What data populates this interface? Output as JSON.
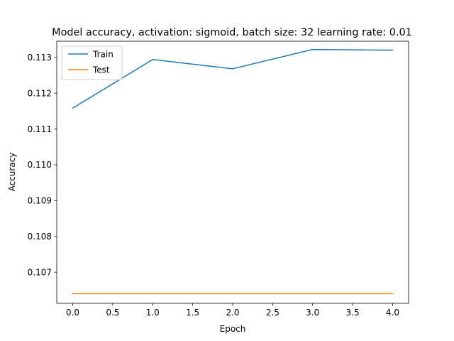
{
  "chart_data": {
    "type": "line",
    "title": "Model accuracy, activation: sigmoid, batch size: 32 learning rate: 0.01",
    "xlabel": "Epoch",
    "ylabel": "Accuracy",
    "xlim": [
      -0.2,
      4.2
    ],
    "ylim": [
      0.10613,
      0.11345
    ],
    "x_ticks": [
      0.0,
      0.5,
      1.0,
      1.5,
      2.0,
      2.5,
      3.0,
      3.5,
      4.0
    ],
    "x_tick_labels": [
      "0.0",
      "0.5",
      "1.0",
      "1.5",
      "2.0",
      "2.5",
      "3.0",
      "3.5",
      "4.0"
    ],
    "y_ticks": [
      0.107,
      0.108,
      0.109,
      0.11,
      0.111,
      0.112,
      0.113
    ],
    "y_tick_labels": [
      "0.107",
      "0.108",
      "0.109",
      "0.110",
      "0.111",
      "0.112",
      "0.113"
    ],
    "x": [
      0,
      1,
      2,
      3,
      4
    ],
    "series": [
      {
        "name": "Train",
        "color": "#1f77b4",
        "values": [
          0.11158,
          0.11294,
          0.11268,
          0.11322,
          0.1132
        ]
      },
      {
        "name": "Test",
        "color": "#ff7f0e",
        "values": [
          0.1064,
          0.1064,
          0.1064,
          0.1064,
          0.1064
        ]
      }
    ],
    "legend": {
      "position": "top-left",
      "entries": [
        "Train",
        "Test"
      ]
    },
    "grid": false
  }
}
